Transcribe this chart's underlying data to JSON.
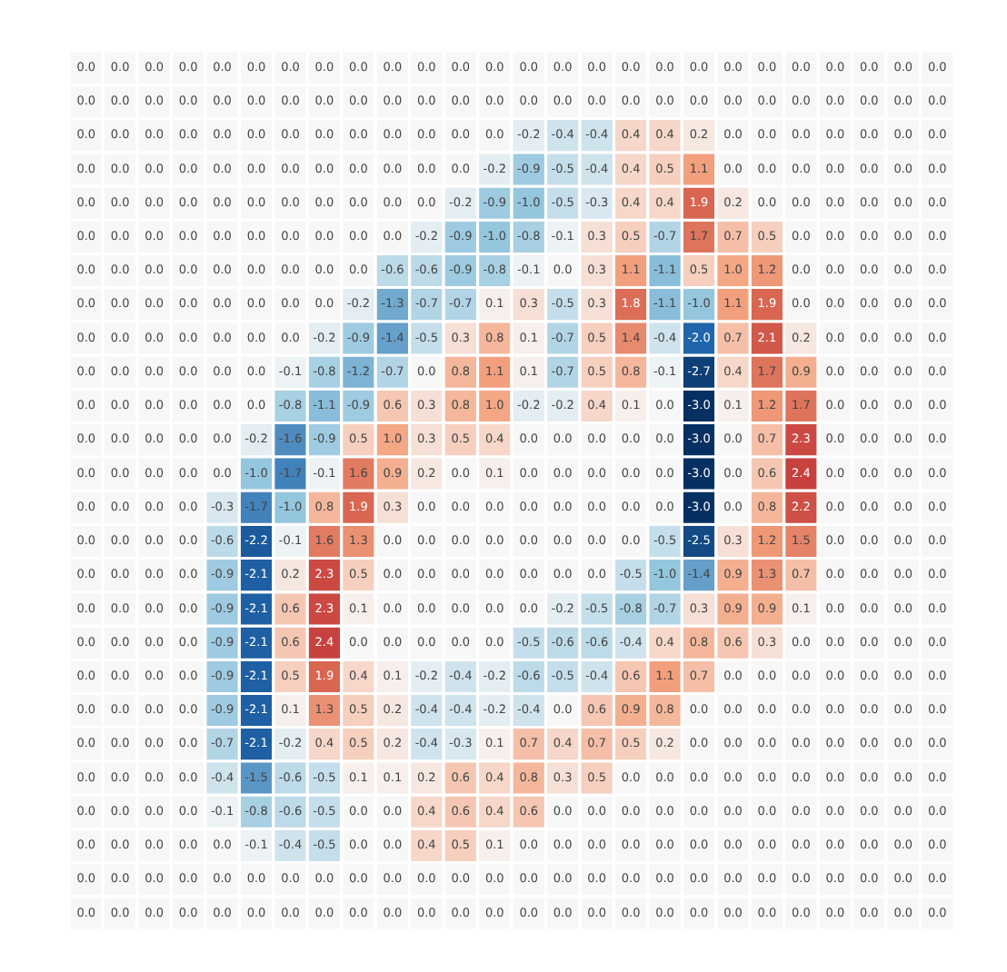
{
  "chart_data": {
    "type": "heatmap",
    "categories": [
      null,
      null,
      null,
      null,
      null,
      null,
      null,
      null,
      null,
      null,
      null,
      null,
      null,
      null,
      null,
      null,
      null,
      null,
      null,
      null,
      null,
      null,
      null,
      null,
      null,
      null
    ],
    "y_categories": [
      null,
      null,
      null,
      null,
      null,
      null,
      null,
      null,
      null,
      null,
      null,
      null,
      null,
      null,
      null,
      null,
      null,
      null,
      null,
      null,
      null,
      null,
      null,
      null,
      null,
      null
    ],
    "cells": [
      [
        0,
        0,
        0,
        0,
        0,
        0,
        0,
        0,
        0,
        0,
        0,
        0,
        0,
        0,
        0,
        0,
        0,
        0,
        0,
        0,
        0,
        0,
        0,
        0,
        0,
        0
      ],
      [
        0,
        0,
        0,
        0,
        0,
        0,
        0,
        0,
        0,
        0,
        0,
        0,
        0,
        0,
        0,
        0,
        0,
        0,
        0,
        0,
        0,
        0,
        0,
        0,
        0,
        0
      ],
      [
        0,
        0,
        0,
        0,
        0,
        0,
        0,
        0,
        0,
        0,
        0,
        0,
        0,
        -0.2,
        -0.4,
        -0.4,
        0.4,
        0.4,
        0.2,
        0,
        0,
        0,
        0,
        0,
        0,
        0
      ],
      [
        0,
        0,
        0,
        0,
        0,
        0,
        0,
        0,
        0,
        0,
        0,
        0,
        -0.2,
        -0.9,
        -0.5,
        -0.4,
        0.4,
        0.5,
        1.1,
        0,
        0,
        0,
        0,
        0,
        0,
        0
      ],
      [
        0,
        0,
        0,
        0,
        0,
        0,
        0,
        0,
        0,
        0,
        0,
        -0.2,
        -0.9,
        -1.0,
        -0.5,
        -0.3,
        0.4,
        0.4,
        1.9,
        0.2,
        0,
        0,
        0,
        0,
        0,
        0
      ],
      [
        0,
        0,
        0,
        0,
        0,
        0,
        0,
        0,
        0,
        0,
        -0.2,
        -0.9,
        -1.0,
        -0.8,
        -0.1,
        0.3,
        0.5,
        -0.7,
        1.7,
        0.7,
        0.5,
        0,
        0,
        0,
        0,
        0
      ],
      [
        0,
        0,
        0,
        0,
        0,
        0,
        0,
        0,
        0,
        -0.6,
        -0.6,
        -0.9,
        -0.8,
        -0.1,
        0,
        0.3,
        1.1,
        -1.1,
        0.5,
        1.0,
        1.2,
        0,
        0,
        0,
        0,
        0
      ],
      [
        0,
        0,
        0,
        0,
        0,
        0,
        0,
        0,
        -0.2,
        -1.3,
        -0.7,
        -0.7,
        0.1,
        0.3,
        -0.5,
        0.3,
        1.8,
        -1.1,
        -1.0,
        1.1,
        1.9,
        0,
        0,
        0,
        0,
        0
      ],
      [
        0,
        0,
        0,
        0,
        0,
        0,
        0,
        -0.2,
        -0.9,
        -1.4,
        -0.5,
        0.3,
        0.8,
        0.1,
        -0.7,
        0.5,
        1.4,
        -0.4,
        -2.0,
        0.7,
        2.1,
        0.2,
        0,
        0,
        0,
        0
      ],
      [
        0,
        0,
        0,
        0,
        0,
        0,
        -0.1,
        -0.8,
        -1.2,
        -0.7,
        0,
        0.8,
        1.1,
        0.1,
        -0.7,
        0.5,
        0.8,
        -0.1,
        -2.7,
        0.4,
        1.7,
        0.9,
        0,
        0,
        0,
        0
      ],
      [
        0,
        0,
        0,
        0,
        0,
        0,
        -0.8,
        -1.1,
        -0.9,
        0.6,
        0.3,
        0.8,
        1.0,
        -0.2,
        -0.2,
        0.4,
        0.1,
        0,
        -3.0,
        0.1,
        1.2,
        1.7,
        0,
        0,
        0,
        0
      ],
      [
        0,
        0,
        0,
        0,
        0,
        -0.2,
        -1.6,
        -0.9,
        0.5,
        1.0,
        0.3,
        0.5,
        0.4,
        0,
        0,
        0,
        0,
        0,
        -3.0,
        0,
        0.7,
        2.3,
        0,
        0,
        0,
        0
      ],
      [
        0,
        0,
        0,
        0,
        0,
        -1.0,
        -1.7,
        -0.1,
        1.6,
        0.9,
        0.2,
        0,
        0.1,
        0,
        0,
        0,
        0,
        0,
        -3.0,
        0,
        0.6,
        2.4,
        0,
        0,
        0,
        0
      ],
      [
        0,
        0,
        0,
        0,
        -0.3,
        -1.7,
        -1.0,
        0.8,
        1.9,
        0.3,
        0,
        0,
        0,
        0,
        0,
        0,
        0,
        0,
        -3.0,
        0,
        0.8,
        2.2,
        0,
        0,
        0,
        0
      ],
      [
        0,
        0,
        0,
        0,
        -0.6,
        -2.2,
        -0.1,
        1.6,
        1.3,
        0,
        0,
        0,
        0,
        0,
        0,
        0,
        0,
        -0.5,
        -2.5,
        0.3,
        1.2,
        1.5,
        0,
        0,
        0,
        0
      ],
      [
        0,
        0,
        0,
        0,
        -0.9,
        -2.1,
        0.2,
        2.3,
        0.5,
        0,
        0,
        0,
        0,
        0,
        0,
        0,
        -0.5,
        -1.0,
        -1.4,
        0.9,
        1.3,
        0.7,
        0,
        0,
        0,
        0
      ],
      [
        0,
        0,
        0,
        0,
        -0.9,
        -2.1,
        0.6,
        2.3,
        0.1,
        0,
        0,
        0,
        0,
        0,
        -0.2,
        -0.5,
        -0.8,
        -0.7,
        0.3,
        0.9,
        0.9,
        0.1,
        0,
        0,
        0,
        0
      ],
      [
        0,
        0,
        0,
        0,
        -0.9,
        -2.1,
        0.6,
        2.4,
        0,
        0,
        0,
        0,
        0,
        -0.5,
        -0.6,
        -0.6,
        -0.4,
        0.4,
        0.8,
        0.6,
        0.3,
        0,
        0,
        0,
        0,
        0
      ],
      [
        0,
        0,
        0,
        0,
        -0.9,
        -2.1,
        0.5,
        1.9,
        0.4,
        0.1,
        -0.2,
        -0.4,
        -0.2,
        -0.6,
        -0.5,
        -0.4,
        0.6,
        1.1,
        0.7,
        0,
        0,
        0,
        0,
        0,
        0,
        0
      ],
      [
        0,
        0,
        0,
        0,
        -0.9,
        -2.1,
        0.1,
        1.3,
        0.5,
        0.2,
        -0.4,
        -0.4,
        -0.2,
        -0.4,
        0,
        0.6,
        0.9,
        0.8,
        0,
        0,
        0,
        0,
        0,
        0,
        0,
        0
      ],
      [
        0,
        0,
        0,
        0,
        -0.7,
        -2.1,
        -0.2,
        0.4,
        0.5,
        0.2,
        -0.4,
        -0.3,
        0.1,
        0.7,
        0.4,
        0.7,
        0.5,
        0.2,
        0,
        0,
        0,
        0,
        0,
        0,
        0,
        0
      ],
      [
        0,
        0,
        0,
        0,
        -0.4,
        -1.5,
        -0.6,
        -0.5,
        0.1,
        0.1,
        0.2,
        0.6,
        0.4,
        0.8,
        0.3,
        0.5,
        0,
        0,
        0,
        0,
        0,
        0,
        0,
        0,
        0,
        0
      ],
      [
        0,
        0,
        0,
        0,
        -0.1,
        -0.8,
        -0.6,
        -0.5,
        0,
        0,
        0.4,
        0.6,
        0.4,
        0.6,
        0,
        0,
        0,
        0,
        0,
        0,
        0,
        0,
        0,
        0,
        0,
        0
      ],
      [
        0,
        0,
        0,
        0,
        0,
        -0.1,
        -0.4,
        -0.5,
        0,
        0,
        0.4,
        0.5,
        0.1,
        0,
        0,
        0,
        0,
        0,
        0,
        0,
        0,
        0,
        0,
        0,
        0,
        0
      ],
      [
        0,
        0,
        0,
        0,
        0,
        0,
        0,
        0,
        0,
        0,
        0,
        0,
        0,
        0,
        0,
        0,
        0,
        0,
        0,
        0,
        0,
        0,
        0,
        0,
        0,
        0
      ],
      [
        0,
        0,
        0,
        0,
        0,
        0,
        0,
        0,
        0,
        0,
        0,
        0,
        0,
        0,
        0,
        0,
        0,
        0,
        0,
        0,
        0,
        0,
        0,
        0,
        0,
        0
      ]
    ],
    "cell_labels": [
      [
        "0.0",
        "0.0",
        "0.0",
        "0.0",
        "0.0",
        "0.0",
        "0.0",
        "0.0",
        "0.0",
        "0.0",
        "0.0",
        "0.0",
        "0.0",
        "0.0",
        "0.0",
        "0.0",
        "0.0",
        "0.0",
        "0.0",
        "0.0",
        "0.0",
        "0.0",
        "0.0",
        "0.0",
        "0.0",
        "0.0"
      ],
      [
        "0.0",
        "0.0",
        "0.0",
        "0.0",
        "0.0",
        "0.0",
        "0.0",
        "0.0",
        "0.0",
        "0.0",
        "0.0",
        "0.0",
        "0.0",
        "0.0",
        "0.0",
        "0.0",
        "0.0",
        "0.0",
        "0.0",
        "0.0",
        "0.0",
        "0.0",
        "0.0",
        "0.0",
        "0.0",
        "0.0"
      ],
      [
        "0.0",
        "0.0",
        "0.0",
        "0.0",
        "0.0",
        "0.0",
        "0.0",
        "0.0",
        "0.0",
        "0.0",
        "0.0",
        "0.0",
        "0.0",
        "-0.2",
        "-0.4",
        "-0.4",
        "0.4",
        "0.4",
        "0.2",
        "0.0",
        "0.0",
        "0.0",
        "0.0",
        "0.0",
        "0.0",
        "0.0"
      ],
      [
        "0.0",
        "0.0",
        "0.0",
        "0.0",
        "0.0",
        "0.0",
        "0.0",
        "0.0",
        "0.0",
        "0.0",
        "0.0",
        "0.0",
        "-0.2",
        "-0.9",
        "-0.5",
        "-0.4",
        "0.4",
        "0.5",
        "1.1",
        "0.0",
        "0.0",
        "0.0",
        "0.0",
        "0.0",
        "0.0",
        "0.0"
      ],
      [
        "0.0",
        "0.0",
        "0.0",
        "0.0",
        "0.0",
        "0.0",
        "0.0",
        "0.0",
        "0.0",
        "0.0",
        "0.0",
        "-0.2",
        "-0.9",
        "-1.0",
        "-0.5",
        "-0.3",
        "0.4",
        "0.4",
        "1.9",
        "0.2",
        "0.0",
        "0.0",
        "0.0",
        "0.0",
        "0.0",
        "0.0"
      ],
      [
        "0.0",
        "0.0",
        "0.0",
        "0.0",
        "0.0",
        "0.0",
        "0.0",
        "0.0",
        "0.0",
        "0.0",
        "-0.2",
        "-0.9",
        "-1.0",
        "-0.8",
        "-0.1",
        "0.3",
        "0.5",
        "-0.7",
        "1.7",
        "0.7",
        "0.5",
        "0.0",
        "0.0",
        "0.0",
        "0.0",
        "0.0"
      ],
      [
        "0.0",
        "0.0",
        "0.0",
        "0.0",
        "0.0",
        "0.0",
        "0.0",
        "0.0",
        "0.0",
        "-0.6",
        "-0.6",
        "-0.9",
        "-0.8",
        "-0.1",
        "0.0",
        "0.3",
        "1.1",
        "-1.1",
        "0.5",
        "1.0",
        "1.2",
        "0.0",
        "0.0",
        "0.0",
        "0.0",
        "0.0"
      ],
      [
        "0.0",
        "0.0",
        "0.0",
        "0.0",
        "0.0",
        "0.0",
        "0.0",
        "0.0",
        "-0.2",
        "-1.3",
        "-0.7",
        "-0.7",
        "0.1",
        "0.3",
        "-0.5",
        "0.3",
        "1.8",
        "-1.1",
        "-1.0",
        "1.1",
        "1.9",
        "0.0",
        "0.0",
        "0.0",
        "0.0",
        "0.0"
      ],
      [
        "0.0",
        "0.0",
        "0.0",
        "0.0",
        "0.0",
        "0.0",
        "0.0",
        "-0.2",
        "-0.9",
        "-1.4",
        "-0.5",
        "0.3",
        "0.8",
        "0.1",
        "-0.7",
        "0.5",
        "1.4",
        "-0.4",
        "-2.0",
        "0.7",
        "2.1",
        "0.2",
        "0.0",
        "0.0",
        "0.0",
        "0.0"
      ],
      [
        "0.0",
        "0.0",
        "0.0",
        "0.0",
        "0.0",
        "0.0",
        "-0.1",
        "-0.8",
        "-1.2",
        "-0.7",
        "0.0",
        "0.8",
        "1.1",
        "0.1",
        "-0.7",
        "0.5",
        "0.8",
        "-0.1",
        "-2.7",
        "0.4",
        "1.7",
        "0.9",
        "0.0",
        "0.0",
        "0.0",
        "0.0"
      ],
      [
        "0.0",
        "0.0",
        "0.0",
        "0.0",
        "0.0",
        "0.0",
        "-0.8",
        "-1.1",
        "-0.9",
        "0.6",
        "0.3",
        "0.8",
        "1.0",
        "-0.2",
        "-0.2",
        "0.4",
        "0.1",
        "0.0",
        "-3.0",
        "0.1",
        "1.2",
        "1.7",
        "0.0",
        "0.0",
        "0.0",
        "0.0"
      ],
      [
        "0.0",
        "0.0",
        "0.0",
        "0.0",
        "0.0",
        "-0.2",
        "-1.6",
        "-0.9",
        "0.5",
        "1.0",
        "0.3",
        "0.5",
        "0.4",
        "0.0",
        "0.0",
        "0.0",
        "0.0",
        "0.0",
        "-3.0",
        "0.0",
        "0.7",
        "2.3",
        "0.0",
        "0.0",
        "0.0",
        "0.0"
      ],
      [
        "0.0",
        "0.0",
        "0.0",
        "0.0",
        "0.0",
        "-1.0",
        "-1.7",
        "-0.1",
        "1.6",
        "0.9",
        "0.2",
        "0.0",
        "0.1",
        "0.0",
        "0.0",
        "0.0",
        "0.0",
        "0.0",
        "-3.0",
        "0.0",
        "0.6",
        "2.4",
        "0.0",
        "0.0",
        "0.0",
        "0.0"
      ],
      [
        "0.0",
        "0.0",
        "0.0",
        "0.0",
        "-0.3",
        "-1.7",
        "-1.0",
        "0.8",
        "1.9",
        "0.3",
        "0.0",
        "0.0",
        "0.0",
        "0.0",
        "0.0",
        "0.0",
        "0.0",
        "0.0",
        "-3.0",
        "0.0",
        "0.8",
        "2.2",
        "0.0",
        "0.0",
        "0.0",
        "0.0"
      ],
      [
        "0.0",
        "0.0",
        "0.0",
        "0.0",
        "-0.6",
        "-2.2",
        "-0.1",
        "1.6",
        "1.3",
        "0.0",
        "0.0",
        "0.0",
        "0.0",
        "0.0",
        "0.0",
        "0.0",
        "0.0",
        "-0.5",
        "-2.5",
        "0.3",
        "1.2",
        "1.5",
        "0.0",
        "0.0",
        "0.0",
        "0.0"
      ],
      [
        "0.0",
        "0.0",
        "0.0",
        "0.0",
        "-0.9",
        "-2.1",
        "0.2",
        "2.3",
        "0.5",
        "0.0",
        "0.0",
        "0.0",
        "0.0",
        "0.0",
        "0.0",
        "0.0",
        "-0.5",
        "-1.0",
        "-1.4",
        "0.9",
        "1.3",
        "0.7",
        "0.0",
        "0.0",
        "0.0",
        "0.0"
      ],
      [
        "0.0",
        "0.0",
        "0.0",
        "0.0",
        "-0.9",
        "-2.1",
        "0.6",
        "2.3",
        "0.1",
        "0.0",
        "0.0",
        "0.0",
        "0.0",
        "0.0",
        "-0.2",
        "-0.5",
        "-0.8",
        "-0.7",
        "0.3",
        "0.9",
        "0.9",
        "0.1",
        "0.0",
        "0.0",
        "0.0",
        "0.0"
      ],
      [
        "0.0",
        "0.0",
        "0.0",
        "0.0",
        "-0.9",
        "-2.1",
        "0.6",
        "2.4",
        "0.0",
        "0.0",
        "0.0",
        "0.0",
        "0.0",
        "-0.5",
        "-0.6",
        "-0.6",
        "-0.4",
        "0.4",
        "0.8",
        "0.6",
        "0.3",
        "0.0",
        "0.0",
        "0.0",
        "0.0",
        "0.0"
      ],
      [
        "0.0",
        "0.0",
        "0.0",
        "0.0",
        "-0.9",
        "-2.1",
        "0.5",
        "1.9",
        "0.4",
        "0.1",
        "-0.2",
        "-0.4",
        "-0.2",
        "-0.6",
        "-0.5",
        "-0.4",
        "0.6",
        "1.1",
        "0.7",
        "0.0",
        "0.0",
        "0.0",
        "0.0",
        "0.0",
        "0.0",
        "0.0"
      ],
      [
        "0.0",
        "0.0",
        "0.0",
        "0.0",
        "-0.9",
        "-2.1",
        "0.1",
        "1.3",
        "0.5",
        "0.2",
        "-0.4",
        "-0.4",
        "-0.2",
        "-0.4",
        "0.0",
        "0.6",
        "0.9",
        "0.8",
        "0.0",
        "0.0",
        "0.0",
        "0.0",
        "0.0",
        "0.0",
        "0.0",
        "0.0"
      ],
      [
        "0.0",
        "0.0",
        "0.0",
        "0.0",
        "-0.7",
        "-2.1",
        "-0.2",
        "0.4",
        "0.5",
        "0.2",
        "-0.4",
        "-0.3",
        "0.1",
        "0.7",
        "0.4",
        "0.7",
        "0.5",
        "0.2",
        "0.0",
        "0.0",
        "0.0",
        "0.0",
        "0.0",
        "0.0",
        "0.0",
        "0.0"
      ],
      [
        "0.0",
        "0.0",
        "0.0",
        "0.0",
        "-0.4",
        "-1.5",
        "-0.6",
        "-0.5",
        "0.1",
        "0.1",
        "0.2",
        "0.6",
        "0.4",
        "0.8",
        "0.3",
        "0.5",
        "0.0",
        "0.0",
        "0.0",
        "0.0",
        "0.0",
        "0.0",
        "0.0",
        "0.0",
        "0.0",
        "0.0"
      ],
      [
        "0.0",
        "0.0",
        "0.0",
        "0.0",
        "-0.1",
        "-0.8",
        "-0.6",
        "-0.5",
        "0.0",
        "0.0",
        "0.4",
        "0.6",
        "0.4",
        "0.6",
        "0.0",
        "0.0",
        "0.0",
        "0.0",
        "0.0",
        "0.0",
        "0.0",
        "0.0",
        "0.0",
        "0.0",
        "0.0",
        "0.0"
      ],
      [
        "0.0",
        "0.0",
        "0.0",
        "0.0",
        "0.0",
        "-0.1",
        "-0.4",
        "-0.5",
        "0.0",
        "0.0",
        "0.4",
        "0.5",
        "0.1",
        "0.0",
        "0.0",
        "0.0",
        "0.0",
        "0.0",
        "0.0",
        "0.0",
        "0.0",
        "0.0",
        "0.0",
        "0.0",
        "0.0",
        "0.0"
      ],
      [
        "0.0",
        "0.0",
        "0.0",
        "0.0",
        "0.0",
        "0.0",
        "0.0",
        "0.0",
        "0.0",
        "0.0",
        "0.0",
        "0.0",
        "0.0",
        "0.0",
        "0.0",
        "0.0",
        "0.0",
        "0.0",
        "0.0",
        "0.0",
        "0.0",
        "0.0",
        "0.0",
        "0.0",
        "0.0",
        "0.0"
      ],
      [
        "0.0",
        "0.0",
        "0.0",
        "0.0",
        "0.0",
        "0.0",
        "0.0",
        "0.0",
        "0.0",
        "0.0",
        "0.0",
        "0.0",
        "0.0",
        "0.0",
        "0.0",
        "0.0",
        "0.0",
        "0.0",
        "0.0",
        "0.0",
        "0.0",
        "0.0",
        "0.0",
        "0.0",
        "0.0",
        "0.0"
      ]
    ]
  }
}
